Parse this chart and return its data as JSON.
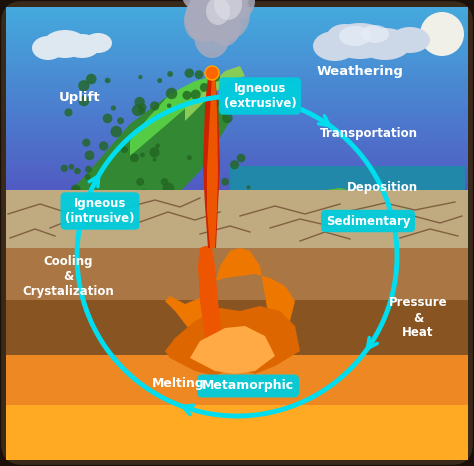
{
  "figsize": [
    4.74,
    4.66
  ],
  "dpi": 100,
  "border_outer": "#3a2a1a",
  "border_inner": "#c8a060",
  "sky_purple_top": "#5544bb",
  "sky_blue_mid": "#4488cc",
  "sky_blue_bottom": "#44aadd",
  "water_color": "#2288aa",
  "volcano_dark_green": "#338833",
  "volcano_mid_green": "#44aa33",
  "volcano_light_green": "#88cc44",
  "dot_green": "#226622",
  "hill_green": "#44aa44",
  "hill_yellow": "#aacc44",
  "lava_red": "#cc2200",
  "lava_orange_dark": "#dd5500",
  "lava_orange": "#ee8800",
  "lava_yellow": "#ffbb00",
  "ground_crack_color": "#c8b888",
  "ground_crack_dark": "#776644",
  "ground_brown1": "#aa7744",
  "ground_brown2": "#885522",
  "ground_brown3": "#663311",
  "smoke_color": "#aaaabc",
  "cloud_white": "#e8e8f0",
  "cloud_gray": "#c8c8d8",
  "moon_color": "#f0f0e8",
  "arrow_color": "#00ddee",
  "label_bg": "#00ccdd",
  "label_text": "#ffffff",
  "plain_text": "#ffffff",
  "labels": {
    "igneous_extrusive": "Igneous\n(extrusive)",
    "weathering": "Weathering",
    "transportation": "Transportation",
    "deposition": "Deposition",
    "sedimentary": "Sedimentary",
    "pressure_heat": "Pressure\n&\nHeat",
    "metamorphic": "Metamorphic",
    "melting": "Melting",
    "cooling": "Cooling\n&\nCrystalization",
    "uplift": "Uplift",
    "igneous_intrusive": "Igneous\n(intrusive)"
  }
}
